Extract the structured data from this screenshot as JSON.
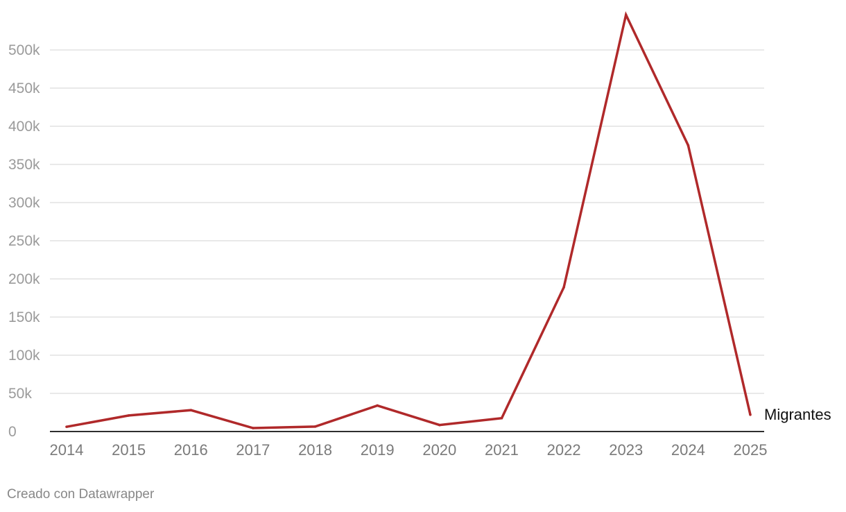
{
  "chart_data": {
    "type": "line",
    "x": [
      "2014",
      "2015",
      "2016",
      "2017",
      "2018",
      "2019",
      "2020",
      "2021",
      "2022",
      "2023",
      "2024",
      "2025"
    ],
    "y_ticks": [
      0,
      50000,
      100000,
      150000,
      200000,
      250000,
      300000,
      350000,
      400000,
      450000,
      500000
    ],
    "y_tick_labels": [
      "0",
      "50k",
      "100k",
      "150k",
      "200k",
      "250k",
      "300k",
      "350k",
      "400k",
      "450k",
      "500k"
    ],
    "ylim": [
      0,
      545000
    ],
    "grid": true,
    "series": [
      {
        "name": "Migrantes",
        "color": "#b0292a",
        "values": [
          6200,
          21000,
          28000,
          4500,
          6500,
          34000,
          8500,
          17500,
          189000,
          546000,
          375000,
          22000
        ]
      }
    ]
  },
  "footer": {
    "credit": "Creado con Datawrapper"
  }
}
